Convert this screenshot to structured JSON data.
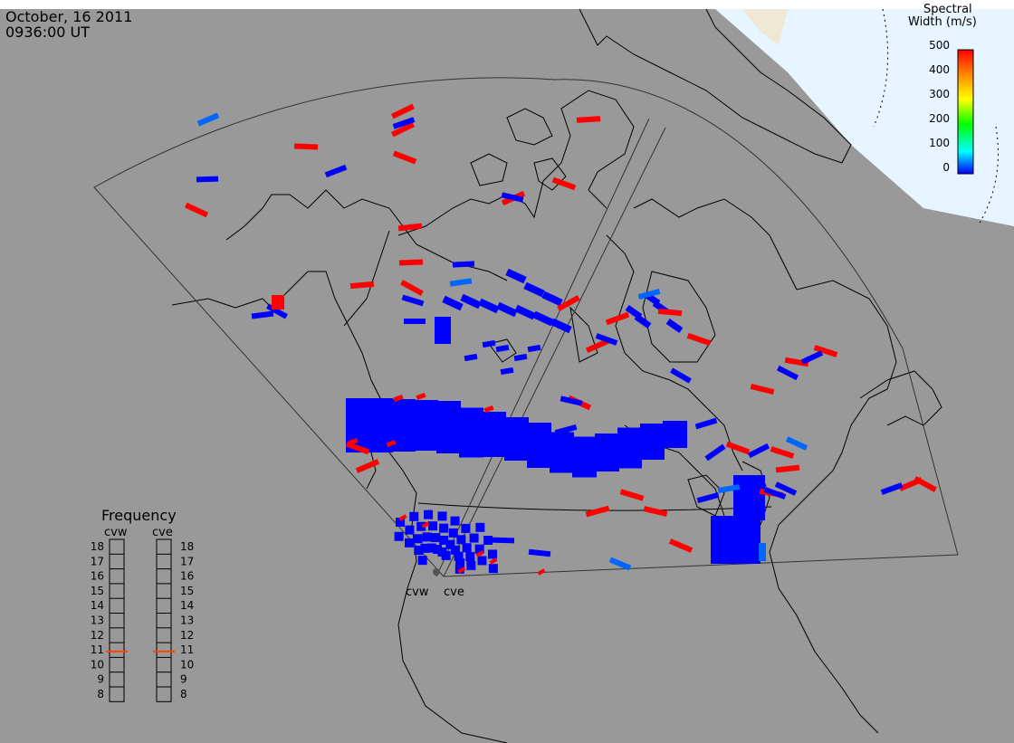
{
  "header": {
    "date": "October, 16 2011",
    "time": "0936:00 UT"
  },
  "colorbar": {
    "title_line1": "Spectral",
    "title_line2": "Width (m/s)",
    "ticks": [
      "500",
      "400",
      "300",
      "200",
      "100",
      "0"
    ],
    "min": 0,
    "max": 500,
    "colors": [
      "#0000ff",
      "#00ffff",
      "#00ff00",
      "#ffff00",
      "#ff8800",
      "#ff0000"
    ]
  },
  "radars": {
    "west": "cvw",
    "east": "cve"
  },
  "frequency": {
    "title": "Frequency",
    "col_left": "cvw",
    "col_right": "cve",
    "ticks": [
      "18",
      "17",
      "16",
      "15",
      "14",
      "13",
      "12",
      "11",
      "10",
      "9",
      "8"
    ],
    "cvw_mhz": 10.9,
    "cve_mhz": 10.9,
    "marker_color": "#ff4400"
  },
  "colors": {
    "background": "#999999",
    "ocean_high_lat": "#e6f5ff",
    "scatter_low": "#0000ff",
    "scatter_high": "#ff0000"
  }
}
